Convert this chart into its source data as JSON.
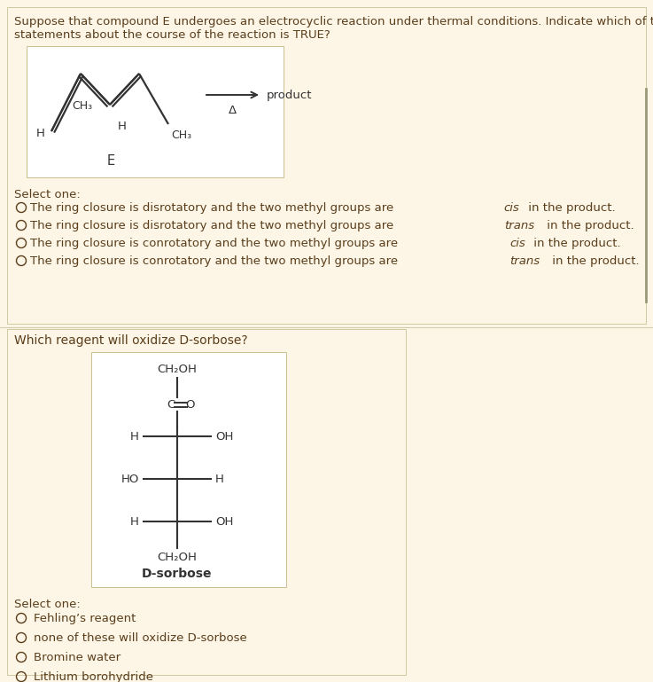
{
  "bg_color": "#fdf5e6",
  "text_color": "#5a3e1b",
  "bond_color": "#333333",
  "q1_title_line1": "Suppose that compound E undergoes an electrocyclic reaction under thermal conditions. Indicate which of the following",
  "q1_title_line2": "statements about the course of the reaction is TRUE?",
  "q1_options_pre": [
    "The ring closure is disrotatory and the two methyl groups are ",
    "The ring closure is disrotatory and the two methyl groups are ",
    "The ring closure is conrotatory and the two methyl groups are ",
    "The ring closure is conrotatory and the two methyl groups are "
  ],
  "q1_options_italic": [
    "cis",
    "trans",
    "cis",
    "trans"
  ],
  "q1_options_post": [
    " in the product.",
    " in the product.",
    " in the product.",
    " in the product."
  ],
  "q2_title": "Which reagent will oxidize D-sorbose?",
  "q2_options": [
    "Fehling’s reagent",
    "none of these will oxidize D-sorbose",
    "Bromine water",
    "Lithium borohydride"
  ],
  "select_one": "Select one:",
  "label_E": "E",
  "label_product": "product",
  "label_delta": "Δ",
  "label_H1": "H",
  "label_CH3_1": "CH₃",
  "label_H2": "H",
  "label_CH3_2": "CH₃"
}
